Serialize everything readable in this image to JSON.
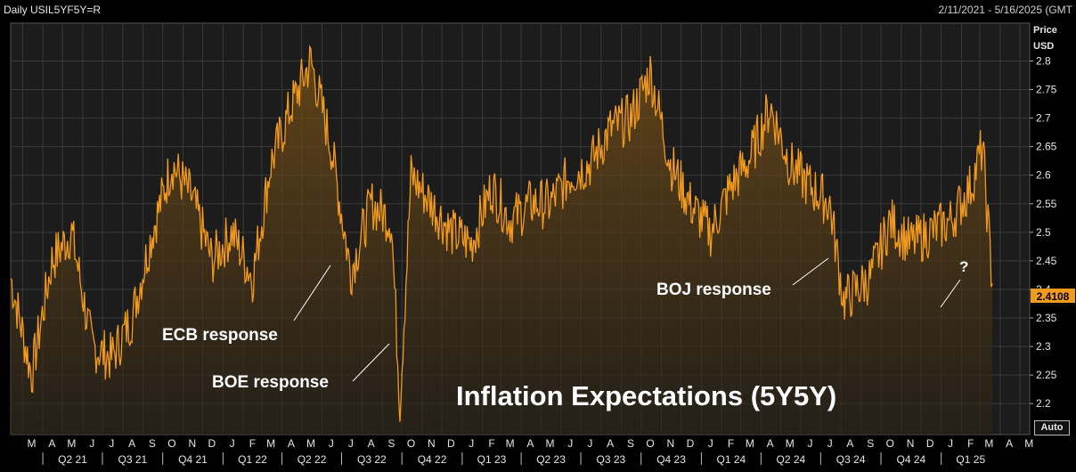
{
  "header": {
    "instrument": "Daily USIL5YF5Y=R",
    "date_range": "2/11/2021 - 5/16/2025 (GMT"
  },
  "axis_title": {
    "line1": "Price",
    "line2": "USD"
  },
  "auto_button": "Auto",
  "colors": {
    "background": "#000000",
    "plot_background": "#1c1c1c",
    "series": "#f29a1e",
    "fill_top": "#7a5218",
    "grid": "#3a3a3a",
    "last_value_bg": "#f29a1e"
  },
  "chart_data": {
    "type": "area",
    "title": "Inflation Expectations (5Y5Y)",
    "y_ticks": [
      "2.2",
      "2.25",
      "2.3",
      "2.35",
      "2.4",
      "2.45",
      "2.5",
      "2.55",
      "2.6",
      "2.65",
      "2.7",
      "2.75",
      "2.8"
    ],
    "ylim": [
      2.18,
      2.86
    ],
    "grid": true,
    "last_value": "2.4108",
    "month_labels": [
      "M",
      "A",
      "M",
      "J",
      "J",
      "A",
      "S",
      "O",
      "N",
      "D",
      "J",
      "F",
      "M",
      "A",
      "M",
      "J",
      "J",
      "A",
      "S",
      "O",
      "N",
      "D",
      "J",
      "F",
      "M",
      "A",
      "M",
      "J",
      "J",
      "A",
      "S",
      "O",
      "N",
      "D",
      "J",
      "F",
      "M",
      "A",
      "M",
      "J",
      "J",
      "A",
      "S",
      "O",
      "N",
      "D",
      "J",
      "F",
      "M",
      "A",
      "M"
    ],
    "quarter_labels": [
      "Q2 21",
      "Q3 21",
      "Q4 21",
      "Q1 22",
      "Q2 22",
      "Q3 22",
      "Q4 22",
      "Q1 23",
      "Q2 23",
      "Q3 23",
      "Q4 23",
      "Q1 24",
      "Q2 24",
      "Q3 24",
      "Q4 24",
      "Q1 25"
    ],
    "x_dates": [
      "2021-02-11",
      "2021-03-15",
      "2021-04-15",
      "2021-05-15",
      "2021-06-15",
      "2021-07-15",
      "2021-08-15",
      "2021-09-15",
      "2021-10-15",
      "2021-11-15",
      "2021-12-15",
      "2022-01-15",
      "2022-02-15",
      "2022-03-15",
      "2022-04-15",
      "2022-05-15",
      "2022-06-15",
      "2022-07-15",
      "2022-08-15",
      "2022-09-15",
      "2022-09-28",
      "2022-10-15",
      "2022-11-15",
      "2022-12-15",
      "2023-01-15",
      "2023-02-15",
      "2023-03-15",
      "2023-04-15",
      "2023-05-15",
      "2023-06-15",
      "2023-07-15",
      "2023-08-15",
      "2023-09-15",
      "2023-10-15",
      "2023-11-15",
      "2023-12-15",
      "2024-01-15",
      "2024-02-15",
      "2024-03-15",
      "2024-04-15",
      "2024-05-15",
      "2024-06-15",
      "2024-07-15",
      "2024-08-05",
      "2024-09-15",
      "2024-10-15",
      "2024-11-15",
      "2024-12-15",
      "2025-01-15",
      "2025-02-15",
      "2025-03-05",
      "2025-03-20"
    ],
    "values": [
      2.42,
      2.25,
      2.45,
      2.5,
      2.3,
      2.28,
      2.35,
      2.5,
      2.62,
      2.56,
      2.45,
      2.5,
      2.42,
      2.62,
      2.72,
      2.8,
      2.65,
      2.43,
      2.55,
      2.52,
      2.2,
      2.6,
      2.55,
      2.5,
      2.48,
      2.58,
      2.52,
      2.55,
      2.55,
      2.6,
      2.62,
      2.68,
      2.7,
      2.78,
      2.62,
      2.55,
      2.5,
      2.58,
      2.63,
      2.72,
      2.62,
      2.58,
      2.55,
      2.38,
      2.42,
      2.52,
      2.48,
      2.5,
      2.52,
      2.58,
      2.65,
      2.41
    ]
  },
  "annotations": {
    "ecb": "ECB response",
    "boe": "BOE response",
    "boj": "BOJ response",
    "question": "?"
  }
}
